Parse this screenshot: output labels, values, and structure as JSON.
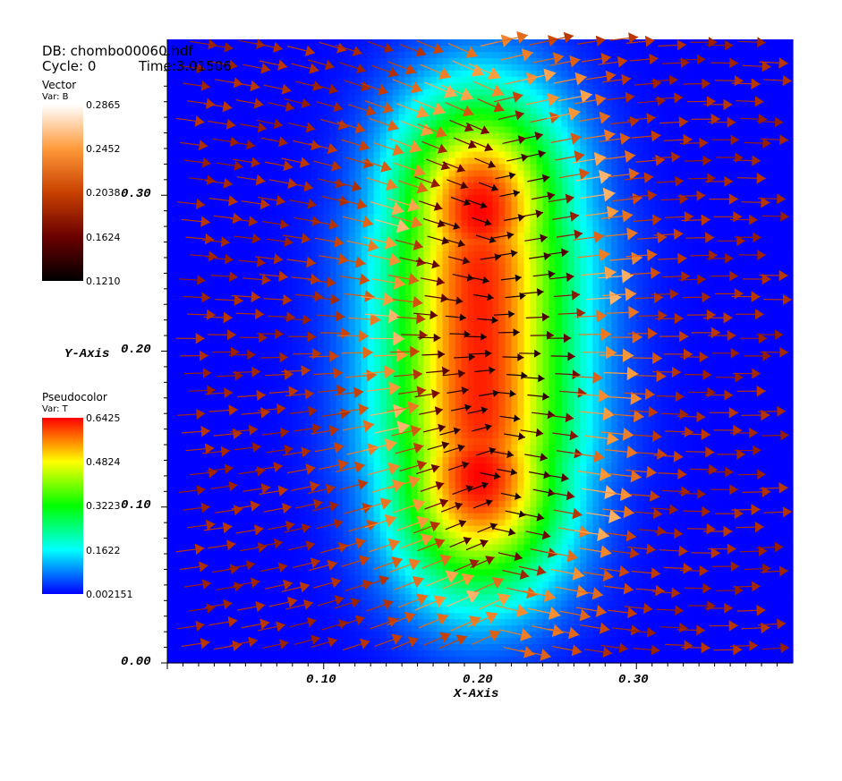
{
  "header": {
    "db_label": "DB: chombo00060.hdf",
    "cycle_label": "Cycle: 0",
    "time_label": "Time:3.01506"
  },
  "legends": {
    "vector": {
      "title": "Vector",
      "var": "Var: B",
      "ticks": [
        "0.2865",
        "0.2452",
        "0.2038",
        "0.1624",
        "0.1210"
      ],
      "min": 0.121,
      "max": 0.2865,
      "colors": [
        "#ffffff",
        "#ff9a3a",
        "#c84000",
        "#6a0000",
        "#000000"
      ]
    },
    "pseudocolor": {
      "title": "Pseudocolor",
      "var": "Var: T",
      "ticks": [
        "0.6425",
        "0.4824",
        "0.3223",
        "0.1622",
        "0.002151"
      ],
      "min": 0.002151,
      "max": 0.6425,
      "colors": [
        "#ff0000",
        "#ffff00",
        "#00ff00",
        "#00ffff",
        "#0000ff"
      ]
    }
  },
  "chart_data": {
    "type": "heatmap",
    "title": "",
    "xlabel": "X-Axis",
    "ylabel": "Y-Axis",
    "xlim": [
      0.0,
      0.4
    ],
    "ylim": [
      0.0,
      0.4
    ],
    "x_ticks": [
      "0.10",
      "0.20",
      "0.30"
    ],
    "y_ticks": [
      "0.00",
      "0.10",
      "0.20",
      "0.30"
    ],
    "x_tick_values": [
      0.1,
      0.2,
      0.3
    ],
    "y_tick_values": [
      0.0,
      0.1,
      0.2,
      0.3
    ],
    "grid": false,
    "pseudocolor": {
      "variable": "T",
      "min": 0.002151,
      "max": 0.6425,
      "description_values": {
        "peaks": [
          {
            "x": 0.2,
            "y": 0.12,
            "value": 0.6425
          },
          {
            "x": 0.2,
            "y": 0.29,
            "value": 0.6425
          }
        ],
        "background": 0.002151
      }
    },
    "vector_field": {
      "variable": "B",
      "min": 0.121,
      "max": 0.2865,
      "grid_spacing": 0.0125,
      "direction": "predominantly +x, converging toward the x=0.2 column from below and diverging above",
      "magnitude_peaks": [
        {
          "x": 0.13,
          "y": 0.02,
          "value": 0.2865
        },
        {
          "x": 0.3,
          "y": 0.38,
          "value": 0.2865
        }
      ]
    }
  }
}
